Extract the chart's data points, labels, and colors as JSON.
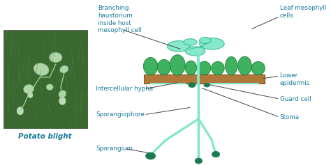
{
  "bg_color": "#ffffff",
  "title": "Potato blight",
  "fungus_color": "#7de8c8",
  "fungus_dark": "#1a7a50",
  "fungus_mid": "#3ab890",
  "leaf_color": "#2aaa50",
  "leaf_dark": "#1a7a30",
  "epidermis_color": "#b07838",
  "text_color": "#1a7a99",
  "line_color": "#444444",
  "labels": {
    "branching": "Branching\nhaustorium\ninside host\nmesophyll cell",
    "leaf_meso": "Leaf mesophyll\ncells",
    "lower_epi": "Lower\nepidermis",
    "guard": "Guard cell",
    "stoma": "Stoma",
    "hypha": "Intercellular hypha",
    "sporangiophore": "Sporangiophore",
    "sporangium": "Sporangium"
  }
}
